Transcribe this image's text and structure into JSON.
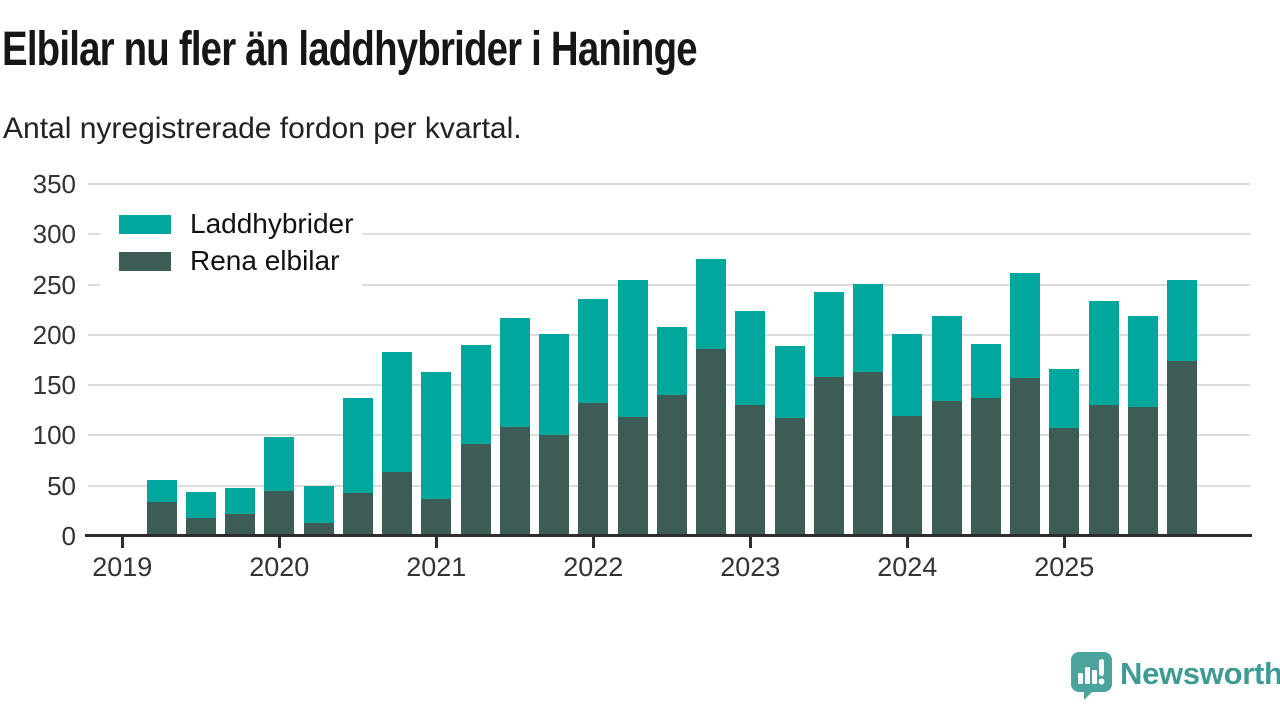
{
  "header": {
    "title": "Elbilar nu fler än laddhybrider i Haninge",
    "subtitle": "Antal nyregistrerade fordon per kvartal."
  },
  "legend": [
    {
      "label": "Laddhybrider",
      "color": "#00a79c"
    },
    {
      "label": "Rena elbilar",
      "color": "#3d5c55"
    }
  ],
  "chart_data": {
    "type": "bar",
    "stacked": true,
    "title": "Elbilar nu fler än laddhybrider i Haninge",
    "subtitle": "Antal nyregistrerade fordon per kvartal.",
    "x": [
      "2019 Q2",
      "2019 Q3",
      "2019 Q4",
      "2020 Q1",
      "2020 Q2",
      "2020 Q3",
      "2020 Q4",
      "2021 Q1",
      "2021 Q2",
      "2021 Q3",
      "2021 Q4",
      "2022 Q1",
      "2022 Q2",
      "2022 Q3",
      "2022 Q4",
      "2023 Q1",
      "2023 Q2",
      "2023 Q3",
      "2023 Q4",
      "2024 Q1",
      "2024 Q2",
      "2024 Q3",
      "2024 Q4",
      "2025 Q1",
      "2025 Q2",
      "2025 Q3",
      "2025 Q4"
    ],
    "series": [
      {
        "name": "Rena elbilar",
        "color": "#3d5c55",
        "values": [
          34,
          18,
          22,
          45,
          13,
          43,
          64,
          37,
          91,
          108,
          100,
          132,
          118,
          140,
          186,
          130,
          117,
          158,
          163,
          119,
          134,
          137,
          157,
          107,
          130,
          128,
          174
        ]
      },
      {
        "name": "Laddhybrider",
        "color": "#00a79c",
        "values": [
          22,
          26,
          26,
          53,
          37,
          94,
          119,
          126,
          99,
          109,
          101,
          104,
          137,
          68,
          89,
          94,
          72,
          85,
          88,
          82,
          85,
          54,
          105,
          59,
          104,
          91,
          81
        ]
      }
    ],
    "totals": [
      56,
      44,
      48,
      98,
      50,
      137,
      183,
      163,
      190,
      217,
      201,
      236,
      255,
      208,
      275,
      224,
      189,
      243,
      251,
      201,
      219,
      191,
      262,
      166,
      234,
      219,
      255
    ],
    "ylim": [
      0,
      350
    ],
    "yticks": [
      0,
      50,
      100,
      150,
      200,
      250,
      300,
      350
    ],
    "xticks": [
      "2019",
      "2020",
      "2021",
      "2022",
      "2023",
      "2024",
      "2025"
    ],
    "grid": "horizontal",
    "legend_position": "top-left"
  },
  "colors": {
    "background": "#ffffff",
    "laddhybrider": "#00a79c",
    "rena_elbilar": "#3d5c55",
    "gridline": "#dcdcdc",
    "axis": "#2d2d2d",
    "axis_text": "#333333",
    "title_text": "#161616",
    "brand_teal": "#3e9a94",
    "brand_bubble": "#4aa39d"
  },
  "footer": {
    "brand": "Newsworthy"
  }
}
